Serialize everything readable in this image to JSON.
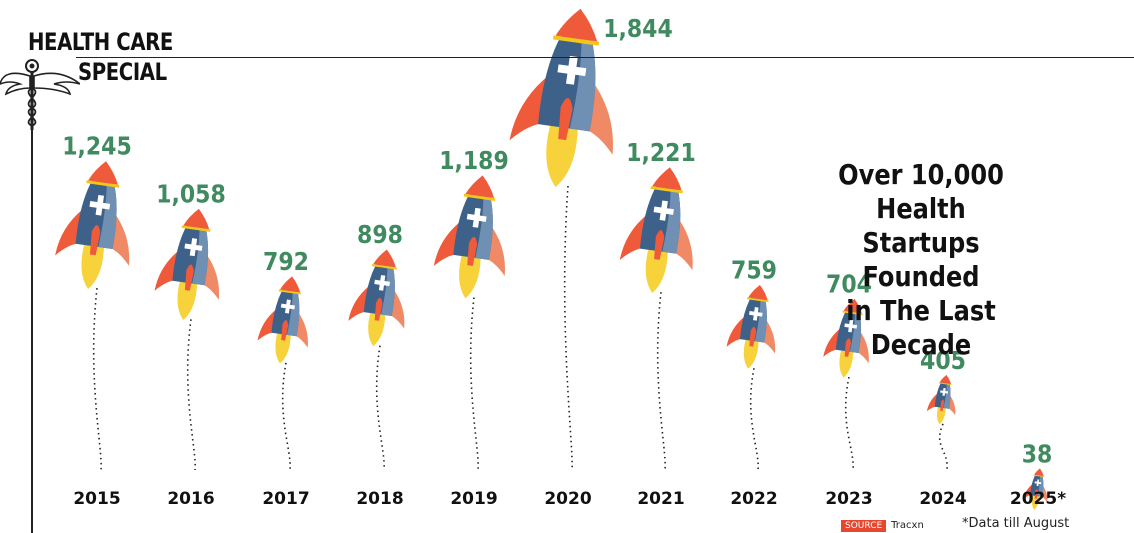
{
  "header": {
    "line1": "HEALTH CARE",
    "line2": "SPECIAL",
    "emblem": "caduceus-icon"
  },
  "headline": {
    "line1": "Over 10,000 Health",
    "line2": "Startups Founded",
    "line3": "in The Last Decade"
  },
  "footer": {
    "source_tag": "SOURCE",
    "source_name": "Tracxn",
    "note": "*Data till August"
  },
  "colors": {
    "value_label": "#3f8a5f",
    "rocket_body": "#3d6189",
    "rocket_body_light": "#6f8fb3",
    "rocket_nose": "#ef5a3b",
    "rocket_fin": "#f08a66",
    "rocket_band": "#f5c518",
    "flame": "#f7d23a"
  },
  "chart_data": {
    "type": "bar",
    "title": "Over 10,000 Health Startups Founded in The Last Decade",
    "xlabel": "",
    "ylabel": "",
    "mark": "rocket",
    "categories": [
      "2015",
      "2016",
      "2017",
      "2018",
      "2019",
      "2020",
      "2021",
      "2022",
      "2023",
      "2024",
      "2025*"
    ],
    "values": [
      1245,
      1058,
      792,
      898,
      1189,
      1844,
      1221,
      759,
      704,
      405,
      38
    ],
    "value_labels": [
      "1,245",
      "1,058",
      "792",
      "898",
      "1,189",
      "1,844",
      "1,221",
      "759",
      "704",
      "405",
      "38"
    ],
    "ylim": [
      0,
      1844
    ],
    "grid": false,
    "legend": "none"
  }
}
